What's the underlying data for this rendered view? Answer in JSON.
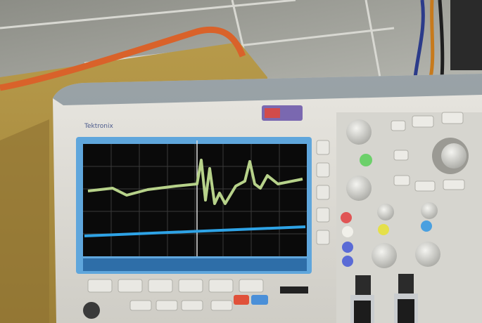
{
  "device": {
    "brand": "Tektronix"
  }
}
